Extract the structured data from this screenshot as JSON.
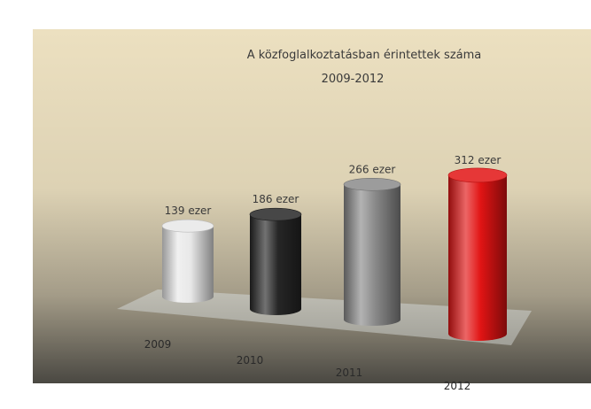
{
  "chart_data": {
    "type": "bar",
    "title": "A közfoglalkoztatásban érintettek száma",
    "subtitle": "2009-2012",
    "categories": [
      "2009",
      "2010",
      "2011",
      "2012"
    ],
    "values": [
      139,
      186,
      266,
      312
    ],
    "data_labels": [
      "139 ezer",
      "186 ezer",
      "266 ezer",
      "312 ezer"
    ],
    "bar_colors": [
      "#e8e8e8",
      "#262626",
      "#8a8a8a",
      "#e11414"
    ],
    "bar_style": "3d-cylinder",
    "xlabel": "",
    "ylabel": "",
    "grid": false,
    "legend": "none"
  }
}
